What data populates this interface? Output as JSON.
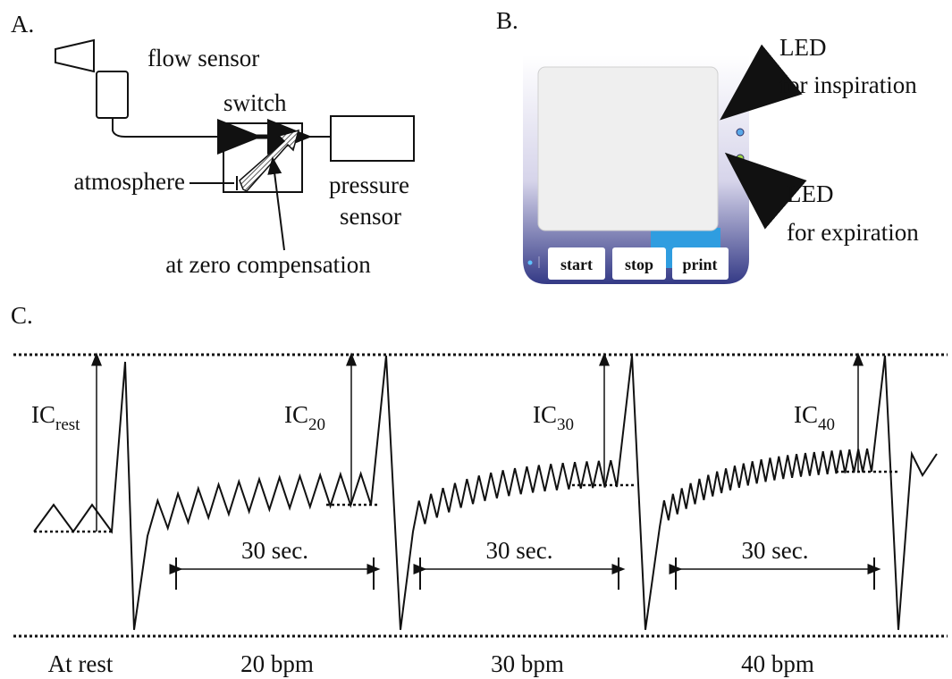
{
  "panel_a": {
    "label": "A.",
    "flow_sensor": "flow sensor",
    "switch": "switch",
    "atmosphere": "atmosphere",
    "pressure_sensor": [
      "pressure",
      "sensor"
    ],
    "zero_compensation": "at zero compensation"
  },
  "panel_b": {
    "label": "B.",
    "led_inspiration": [
      "LED",
      "for inspiration"
    ],
    "led_expiration": [
      "LED",
      "for expiration"
    ],
    "buttons": [
      "start",
      "stop",
      "print"
    ]
  },
  "panel_c": {
    "label": "C.",
    "segments": [
      {
        "ic": "IC",
        "sub": "rest",
        "label": "At rest"
      },
      {
        "ic": "IC",
        "sub": "20",
        "duration": "30 sec.",
        "label": "20 bpm"
      },
      {
        "ic": "IC",
        "sub": "30",
        "duration": "30 sec.",
        "label": "30 bpm"
      },
      {
        "ic": "IC",
        "sub": "40",
        "duration": "30 sec.",
        "label": "40 bpm"
      }
    ]
  }
}
